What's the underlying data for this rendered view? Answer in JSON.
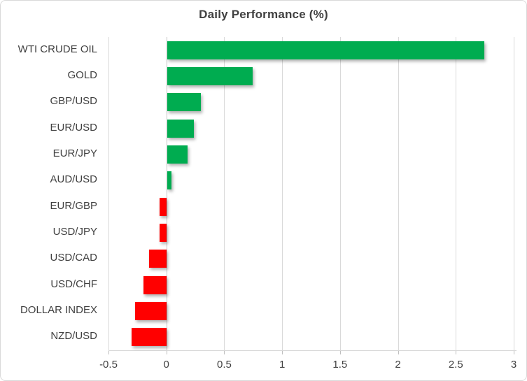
{
  "chart_data": {
    "type": "bar",
    "orientation": "horizontal",
    "title": "Daily Performance (%)",
    "categories": [
      "WTI CRUDE OIL",
      "GOLD",
      "GBP/USD",
      "EUR/USD",
      "EUR/JPY",
      "AUD/USD",
      "EUR/GBP",
      "USD/JPY",
      "USD/CAD",
      "USD/CHF",
      "DOLLAR INDEX",
      "NZD/USD"
    ],
    "values": [
      2.74,
      0.74,
      0.29,
      0.23,
      0.18,
      0.04,
      -0.06,
      -0.06,
      -0.15,
      -0.2,
      -0.27,
      -0.3
    ],
    "xlabel": "",
    "ylabel": "",
    "xlim": [
      -0.5,
      3.0
    ],
    "x_ticks": [
      -0.5,
      0,
      0.5,
      1,
      1.5,
      2,
      2.5,
      3
    ],
    "x_tick_labels": [
      "-0.5",
      "0",
      "0.5",
      "1",
      "1.5",
      "2",
      "2.5",
      "3"
    ],
    "grid": true,
    "legend_position": "none",
    "colors": {
      "positive": "#00AC50",
      "negative": "#FF0000",
      "text": "#404040",
      "gridline": "#D9D9D9",
      "axis": "#BFBFBF",
      "background": "#FFFFFF"
    }
  }
}
